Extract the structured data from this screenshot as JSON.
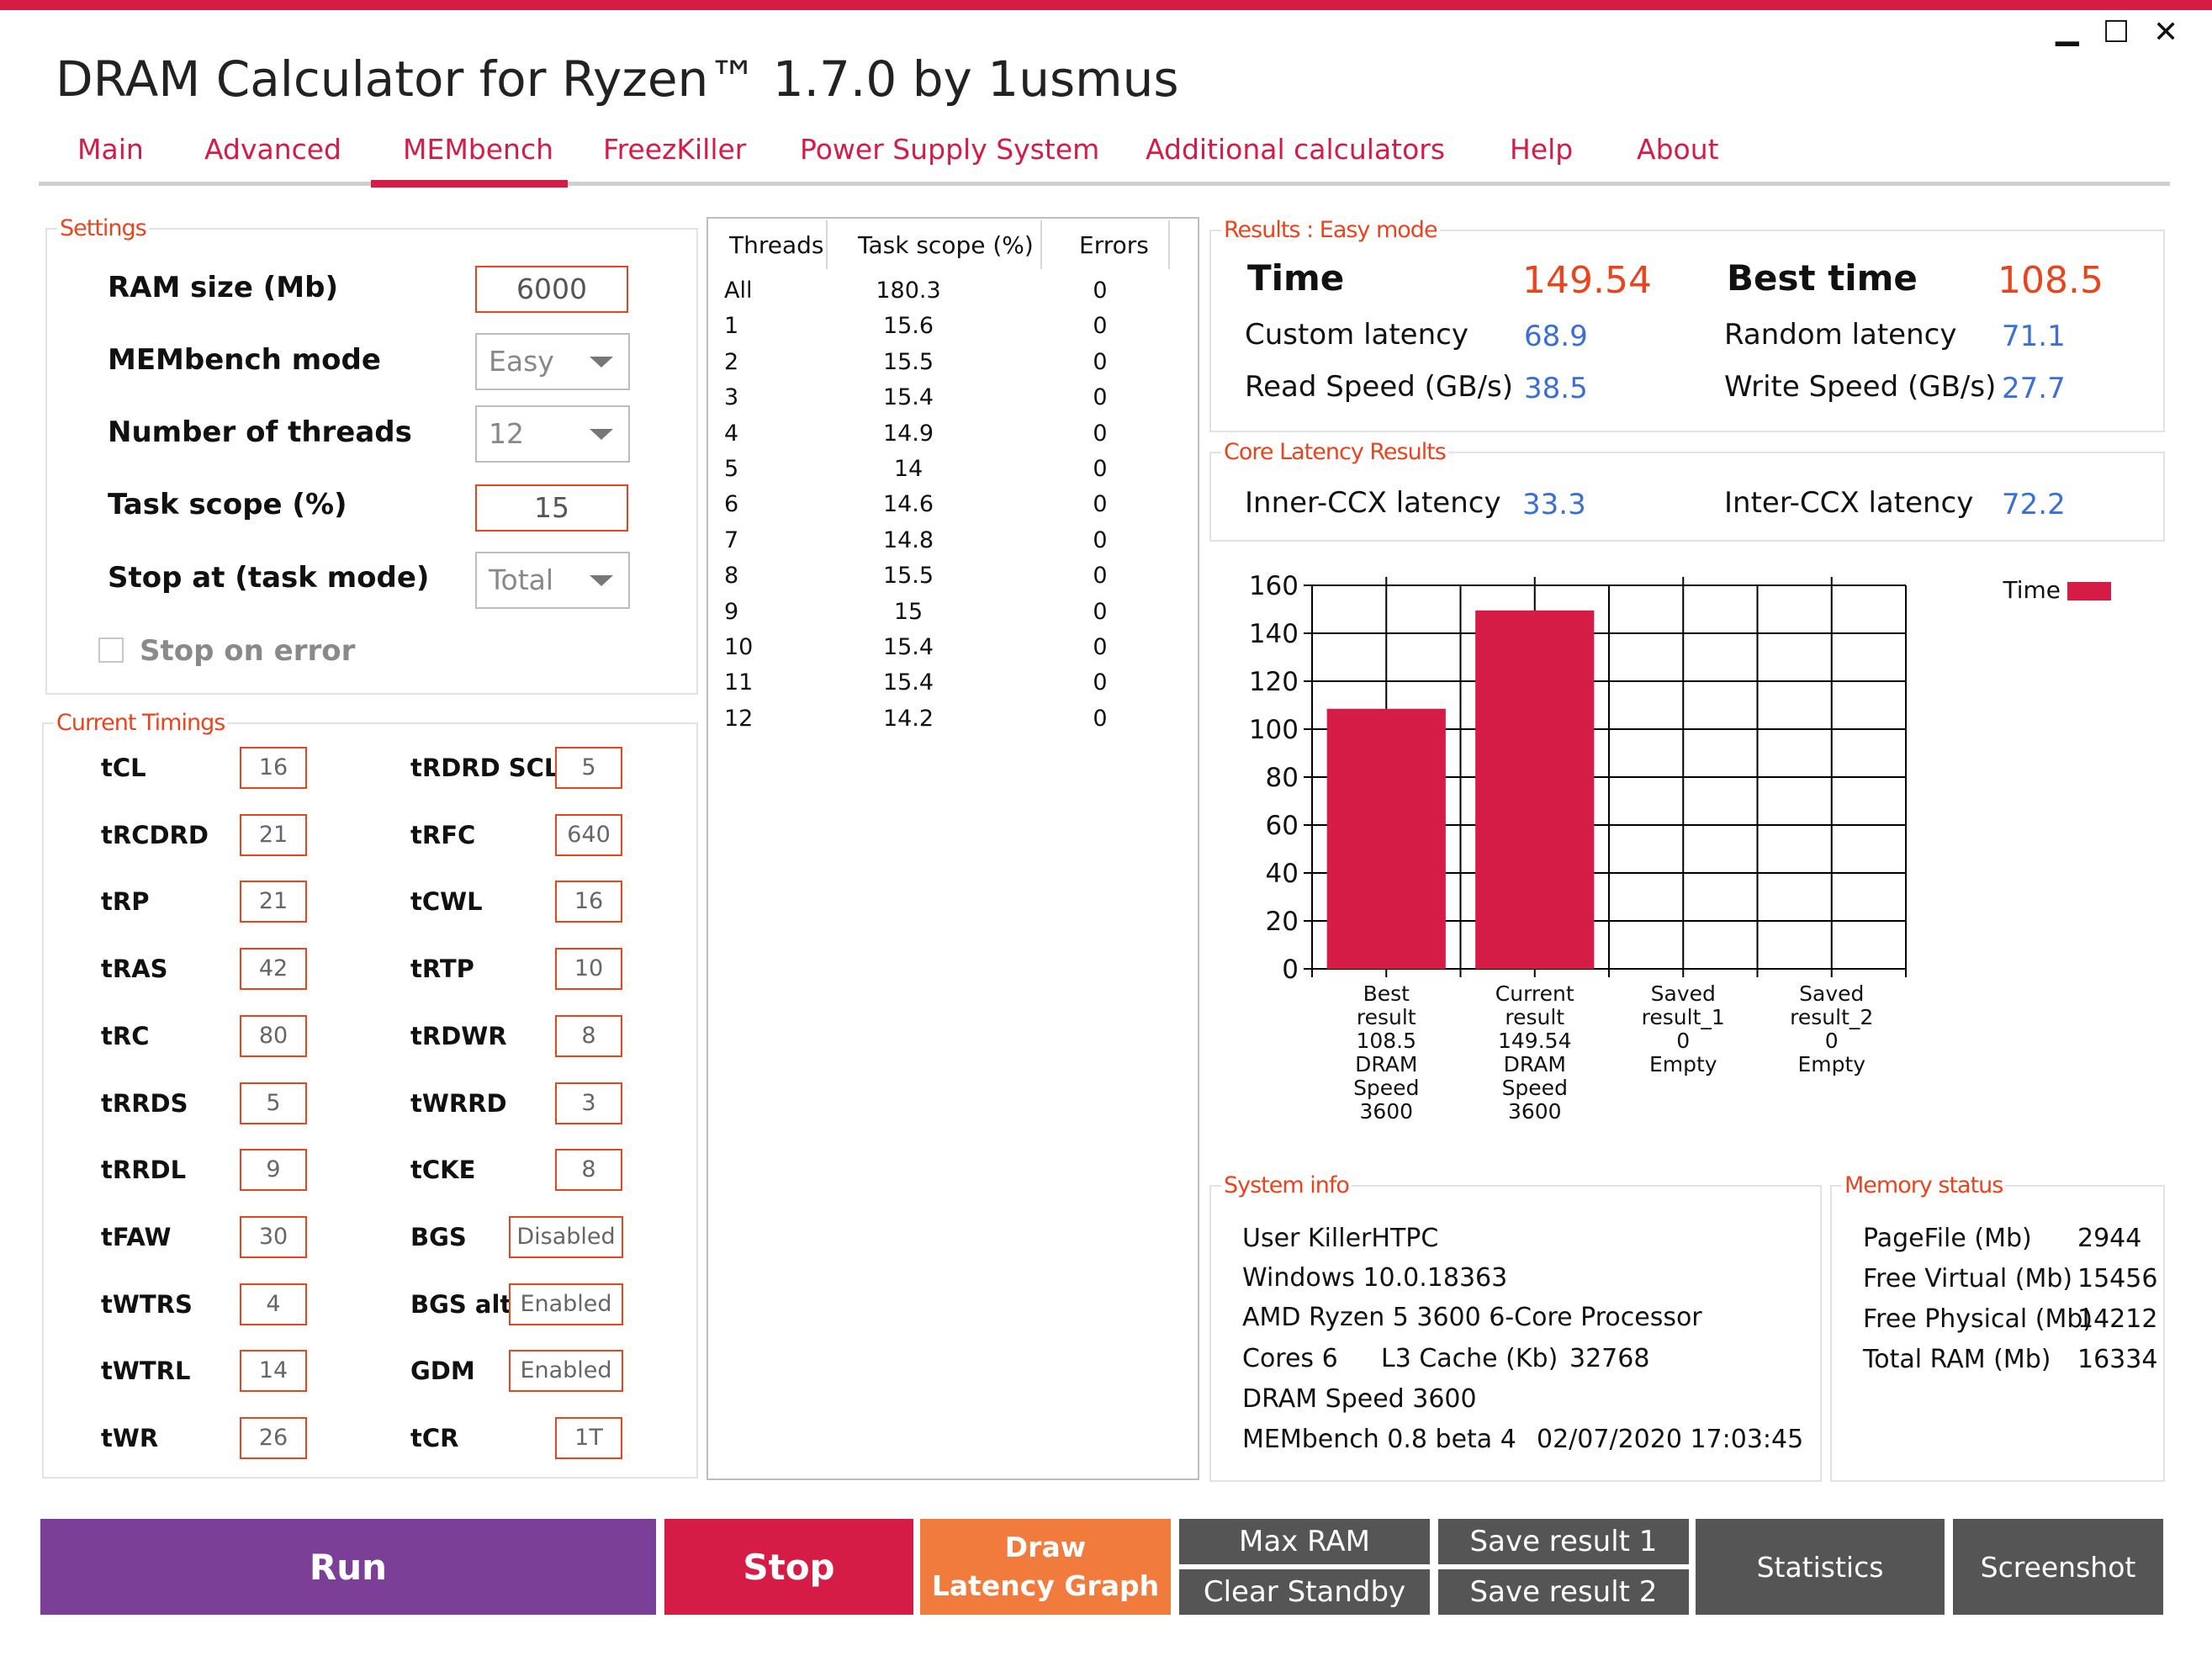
{
  "window": {
    "title": "DRAM Calculator for Ryzen™ 1.7.0 by 1usmus",
    "minimize_glyph": "▁",
    "maximize_glyph": "☐",
    "close_glyph": "✕"
  },
  "tabs": [
    "Main",
    "Advanced",
    "MEMbench",
    "FreezKiller",
    "Power Supply System",
    "Additional calculators",
    "Help",
    "About"
  ],
  "active_tab": "MEMbench",
  "settings": {
    "legend": "Settings",
    "ram_size_label": "RAM size (Mb)",
    "ram_size_value": "6000",
    "mode_label": "MEMbench mode",
    "mode_value": "Easy",
    "threads_label": "Number of threads",
    "threads_value": "12",
    "task_scope_label": "Task scope (%)",
    "task_scope_value": "15",
    "stop_at_label": "Stop at (task mode)",
    "stop_at_value": "Total",
    "stop_on_error_label": "Stop on error",
    "stop_on_error_checked": false
  },
  "timings": {
    "legend": "Current Timings",
    "left": [
      {
        "name": "tCL",
        "value": "16"
      },
      {
        "name": "tRCDRD",
        "value": "21"
      },
      {
        "name": "tRP",
        "value": "21"
      },
      {
        "name": "tRAS",
        "value": "42"
      },
      {
        "name": "tRC",
        "value": "80"
      },
      {
        "name": "tRRDS",
        "value": "5"
      },
      {
        "name": "tRRDL",
        "value": "9"
      },
      {
        "name": "tFAW",
        "value": "30"
      },
      {
        "name": "tWTRS",
        "value": "4"
      },
      {
        "name": "tWTRL",
        "value": "14"
      },
      {
        "name": "tWR",
        "value": "26"
      }
    ],
    "right": [
      {
        "name": "tRDRD SCL",
        "value": "5"
      },
      {
        "name": "tRFC",
        "value": "640"
      },
      {
        "name": "tCWL",
        "value": "16"
      },
      {
        "name": "tRTP",
        "value": "10"
      },
      {
        "name": "tRDWR",
        "value": "8"
      },
      {
        "name": "tWRRD",
        "value": "3"
      },
      {
        "name": "tCKE",
        "value": "8"
      },
      {
        "name": "BGS",
        "value": "Disabled"
      },
      {
        "name": "BGS alt",
        "value": "Enabled"
      },
      {
        "name": "GDM",
        "value": "Enabled"
      },
      {
        "name": "tCR",
        "value": "1T"
      }
    ]
  },
  "threads_table": {
    "headers": [
      "Threads",
      "Task scope (%)",
      "Errors"
    ],
    "rows": [
      [
        "All",
        "180.3",
        "0"
      ],
      [
        "1",
        "15.6",
        "0"
      ],
      [
        "2",
        "15.5",
        "0"
      ],
      [
        "3",
        "15.4",
        "0"
      ],
      [
        "4",
        "14.9",
        "0"
      ],
      [
        "5",
        "14",
        "0"
      ],
      [
        "6",
        "14.6",
        "0"
      ],
      [
        "7",
        "14.8",
        "0"
      ],
      [
        "8",
        "15.5",
        "0"
      ],
      [
        "9",
        "15",
        "0"
      ],
      [
        "10",
        "15.4",
        "0"
      ],
      [
        "11",
        "15.4",
        "0"
      ],
      [
        "12",
        "14.2",
        "0"
      ]
    ]
  },
  "results": {
    "legend": "Results : Easy mode",
    "time_label": "Time",
    "time_value": "149.54",
    "best_time_label": "Best time",
    "best_time_value": "108.5",
    "custom_latency_label": "Custom latency",
    "custom_latency_value": "68.9",
    "random_latency_label": "Random latency",
    "random_latency_value": "71.1",
    "read_speed_label": "Read Speed (GB/s)",
    "read_speed_value": "38.5",
    "write_speed_label": "Write Speed (GB/s)",
    "write_speed_value": "27.7"
  },
  "core_latency": {
    "legend": "Core Latency Results",
    "inner_label": "Inner-CCX latency",
    "inner_value": "33.3",
    "inter_label": "Inter-CCX latency",
    "inter_value": "72.2"
  },
  "chart_data": {
    "type": "bar",
    "categories": [
      [
        "Best",
        "result",
        "108.5",
        "DRAM",
        "Speed",
        "3600"
      ],
      [
        "Current",
        "result",
        "149.54",
        "DRAM",
        "Speed",
        "3600"
      ],
      [
        "Saved",
        "result_1",
        "0",
        "Empty"
      ],
      [
        "Saved",
        "result_2",
        "0",
        "Empty"
      ]
    ],
    "series": [
      {
        "name": "Time",
        "values": [
          108.5,
          149.54,
          0,
          0
        ]
      }
    ],
    "ylim": [
      0,
      160
    ],
    "yticks": [
      0,
      20,
      40,
      60,
      80,
      100,
      120,
      140,
      160
    ],
    "grid": true,
    "legend": "top-right",
    "bar_color": "#d41c47"
  },
  "system_info": {
    "legend": "System info",
    "user": "User KillerHTPC",
    "os": "Windows 10.0.18363",
    "cpu": "AMD Ryzen 5 3600 6-Core Processor",
    "cores": "Cores 6",
    "l3_label": "L3 Cache (Kb)",
    "l3_value": "32768",
    "dram_speed": "DRAM Speed 3600",
    "membench_version": "MEMbench 0.8 beta 4",
    "datetime": "02/07/2020 17:03:45"
  },
  "memory_status": {
    "legend": "Memory status",
    "rows": [
      {
        "label": "PageFile (Mb)",
        "value": "2944"
      },
      {
        "label": "Free Virtual (Mb)",
        "value": "15456"
      },
      {
        "label": "Free Physical (Mb)",
        "value": "14212"
      },
      {
        "label": "Total RAM (Mb)",
        "value": "16334"
      }
    ]
  },
  "buttons": {
    "run": "Run",
    "stop": "Stop",
    "draw_graph_line1": "Draw",
    "draw_graph_line2": "Latency Graph",
    "max_ram": "Max RAM",
    "clear_standby": "Clear Standby",
    "save_result_1": "Save result 1",
    "save_result_2": "Save result 2",
    "statistics": "Statistics",
    "screenshot": "Screenshot"
  },
  "colors": {
    "accent": "#d41c47",
    "legend_orange": "#e8441e",
    "value_blue": "#3b6fd6",
    "run_purple": "#7b3f98",
    "stop_red": "#d41c47",
    "draw_orange": "#f07b3c",
    "gray_button": "#555555"
  }
}
